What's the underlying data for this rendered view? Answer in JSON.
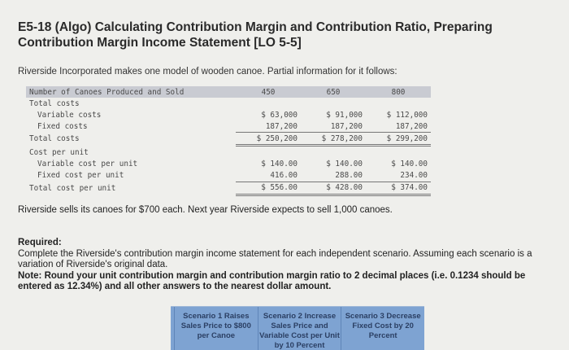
{
  "title": "E5-18 (Algo) Calculating Contribution Margin and Contribution Ratio, Preparing Contribution Margin Income Statement [LO 5-5]",
  "intro": "Riverside Incorporated makes one model of wooden canoe. Partial information for it follows:",
  "table": {
    "header": {
      "label": "Number of Canoes Produced and Sold",
      "cols": [
        "450",
        "650",
        "800"
      ]
    },
    "rows": [
      {
        "label": "Total costs",
        "indent": false,
        "values": [
          "",
          "",
          ""
        ],
        "style": "plain"
      },
      {
        "label": "Variable costs",
        "indent": true,
        "values": [
          "$ 63,000",
          "$ 91,000",
          "$ 112,000"
        ],
        "style": "plain"
      },
      {
        "label": "Fixed costs",
        "indent": true,
        "values": [
          "187,200",
          "187,200",
          "187,200"
        ],
        "style": "sub"
      },
      {
        "label": "Total costs",
        "indent": false,
        "values": [
          "$ 250,200",
          "$ 278,200",
          "$ 299,200"
        ],
        "style": "tot"
      },
      {
        "label": "Cost per unit",
        "indent": false,
        "values": [
          "",
          "",
          ""
        ],
        "style": "plain"
      },
      {
        "label": "Variable cost per unit",
        "indent": true,
        "values": [
          "$ 140.00",
          "$ 140.00",
          "$ 140.00"
        ],
        "style": "plain"
      },
      {
        "label": "Fixed cost per unit",
        "indent": true,
        "values": [
          "416.00",
          "288.00",
          "234.00"
        ],
        "style": "sub"
      },
      {
        "label": "Total cost per unit",
        "indent": false,
        "values": [
          "$ 556.00",
          "$ 428.00",
          "$ 374.00"
        ],
        "style": "tot"
      }
    ]
  },
  "sells": "Riverside sells its canoes for $700 each. Next year Riverside expects to sell 1,000 canoes.",
  "required": {
    "heading": "Required:",
    "text": "Complete the Riverside's contribution margin income statement for each independent scenario. Assuming each scenario is a variation of Riverside's original data.",
    "note": "Note: Round your unit contribution margin and contribution margin ratio to 2 decimal places (i.e. 0.1234 should be entered as 12.34%) and all other answers to the nearest dollar amount."
  },
  "scenarios": [
    "Scenario 1 Raises Sales Price to $800 per Canoe",
    "Scenario 2 Increase Sales Price and Variable Cost per Unit by 10 Percent",
    "Scenario 3 Decrease Fixed Cost by 20 Percent"
  ],
  "colors": {
    "scenario_header": "#7ea3d2",
    "table_header": "#c9cbd2"
  }
}
